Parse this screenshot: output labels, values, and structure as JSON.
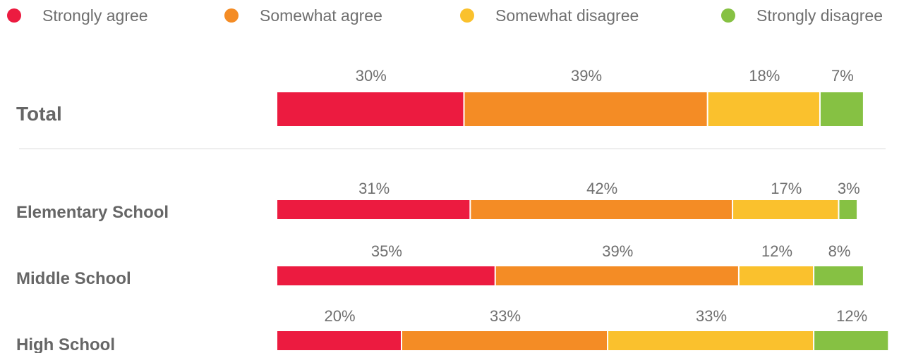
{
  "legend": [
    {
      "label": "Strongly agree",
      "color": "#ec1b40"
    },
    {
      "label": "Somewhat agree",
      "color": "#f48c25"
    },
    {
      "label": "Somewhat disagree",
      "color": "#fac12d"
    },
    {
      "label": "Strongly disagree",
      "color": "#86c143"
    }
  ],
  "chart_data": {
    "type": "bar",
    "orientation": "horizontal",
    "stacked": true,
    "categories": [
      "Total",
      "Elementary School",
      "Middle School",
      "High School"
    ],
    "series": [
      {
        "name": "Strongly agree",
        "values": [
          30,
          31,
          35,
          20
        ]
      },
      {
        "name": "Somewhat agree",
        "values": [
          39,
          42,
          39,
          33
        ]
      },
      {
        "name": "Somewhat disagree",
        "values": [
          18,
          17,
          12,
          33
        ]
      },
      {
        "name": "Strongly disagree",
        "values": [
          7,
          3,
          8,
          12
        ]
      }
    ],
    "value_labels": [
      [
        "30%",
        "39%",
        "18%",
        "7%"
      ],
      [
        "31%",
        "42%",
        "17%",
        "3%"
      ],
      [
        "35%",
        "39%",
        "12%",
        "8%"
      ],
      [
        "20%",
        "33%",
        "33%",
        "12%"
      ]
    ],
    "legend_position": "top",
    "grid": false,
    "colors": [
      "#ec1b40",
      "#f48c25",
      "#fac12d",
      "#86c143"
    ]
  }
}
